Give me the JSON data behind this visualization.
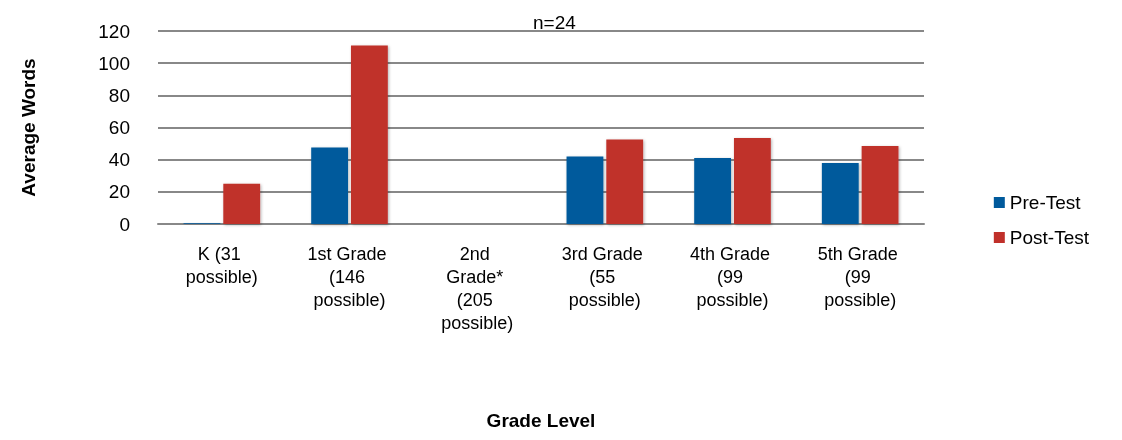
{
  "chart_data": {
    "type": "bar",
    "title": "n=24",
    "xlabel": "Grade Level",
    "ylabel": "Average Words",
    "categories": [
      "K (31 possible)",
      "1st Grade (146 possible)",
      "2nd Grade* (205 possible)",
      "3rd Grade (55 possible)",
      "4th Grade (99 possible)",
      "5th Grade (99 possible)"
    ],
    "series": [
      {
        "name": "Pre-Test",
        "color": "#005a9c",
        "values": [
          0.5,
          47.5,
          null,
          42,
          41,
          38
        ]
      },
      {
        "name": "Post-Test",
        "color": "#c0302a",
        "values": [
          25,
          111,
          null,
          52.5,
          53.5,
          48.5
        ]
      }
    ],
    "ylim": [
      0,
      120
    ],
    "yticks": [
      0,
      20,
      40,
      60,
      80,
      100,
      120
    ],
    "grid": "y",
    "legend": "right"
  }
}
